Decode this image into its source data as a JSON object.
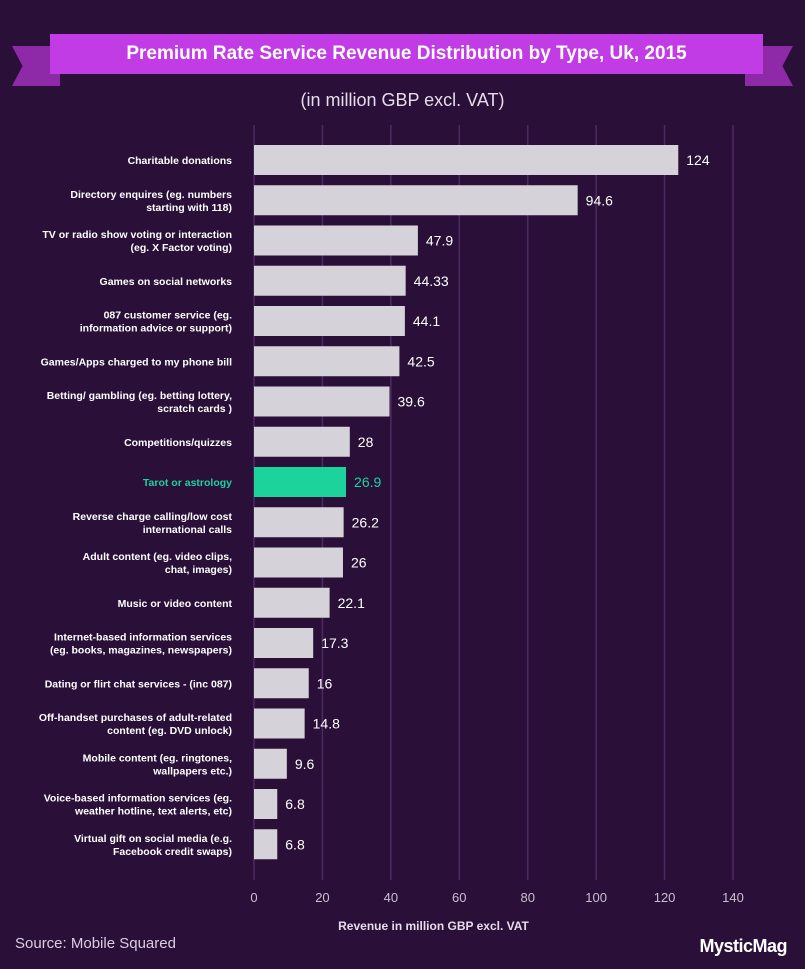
{
  "chart_data": {
    "type": "bar",
    "orientation": "horizontal",
    "title": "Premium Rate Service Revenue Distribution by Type, Uk, 2015",
    "subtitle": "(in million GBP excl. VAT)",
    "xlabel": "Revenue in million GBP excl. VAT",
    "xlim": [
      0,
      140
    ],
    "xticks": [
      0,
      20,
      40,
      60,
      80,
      100,
      120,
      140
    ],
    "grid": true,
    "categories": [
      [
        "Charitable donations"
      ],
      [
        "Directory enquires (eg. numbers",
        "starting with 118)"
      ],
      [
        "TV or radio show voting or interaction",
        "(eg. X Factor voting)"
      ],
      [
        "Games on social networks"
      ],
      [
        "087 customer service (eg.",
        "information advice or support)"
      ],
      [
        "Games/Apps  charged to my phone bill"
      ],
      [
        "Betting/ gambling (eg. betting lottery,",
        "scratch cards )"
      ],
      [
        "Competitions/quizzes"
      ],
      [
        "Tarot or astrology"
      ],
      [
        "Reverse charge calling/low cost",
        "international calls"
      ],
      [
        "Adult content (eg. video clips,",
        "chat, images)"
      ],
      [
        "Music or video content"
      ],
      [
        "Internet-based information services",
        "(eg. books, magazines, newspapers)"
      ],
      [
        "Dating or flirt chat services - (inc 087)"
      ],
      [
        "Off-handset purchases of adult-related",
        "content (eg. DVD unlock)"
      ],
      [
        "Mobile content (eg. ringtones,",
        "wallpapers etc.)"
      ],
      [
        "Voice-based information services (eg.",
        "weather hotline, text alerts, etc)"
      ],
      [
        "Virtual gift on social media (e.g.",
        "Facebook credit swaps)"
      ]
    ],
    "values": [
      124,
      94.6,
      47.9,
      44.33,
      44.1,
      42.5,
      39.6,
      28,
      26.9,
      26.2,
      26,
      22.1,
      17.3,
      16,
      14.8,
      9.6,
      6.8,
      6.8
    ],
    "value_labels": [
      "124",
      "94.6",
      "47.9",
      "44.33",
      "44.1",
      "42.5",
      "39.6",
      "28",
      "26.9",
      "26.2",
      "26",
      "22.1",
      "17.3",
      "16",
      "14.8",
      "9.6",
      "6.8",
      "6.8"
    ],
    "highlight_index": 8,
    "colors": {
      "bar": "#d6d2d9",
      "highlight": "#1dd39c",
      "background": "#2a0f38",
      "banner": "#c23ce6",
      "grid": "#4e2a63"
    }
  },
  "source": "Source: Mobile Squared",
  "logo": "MysticMag"
}
